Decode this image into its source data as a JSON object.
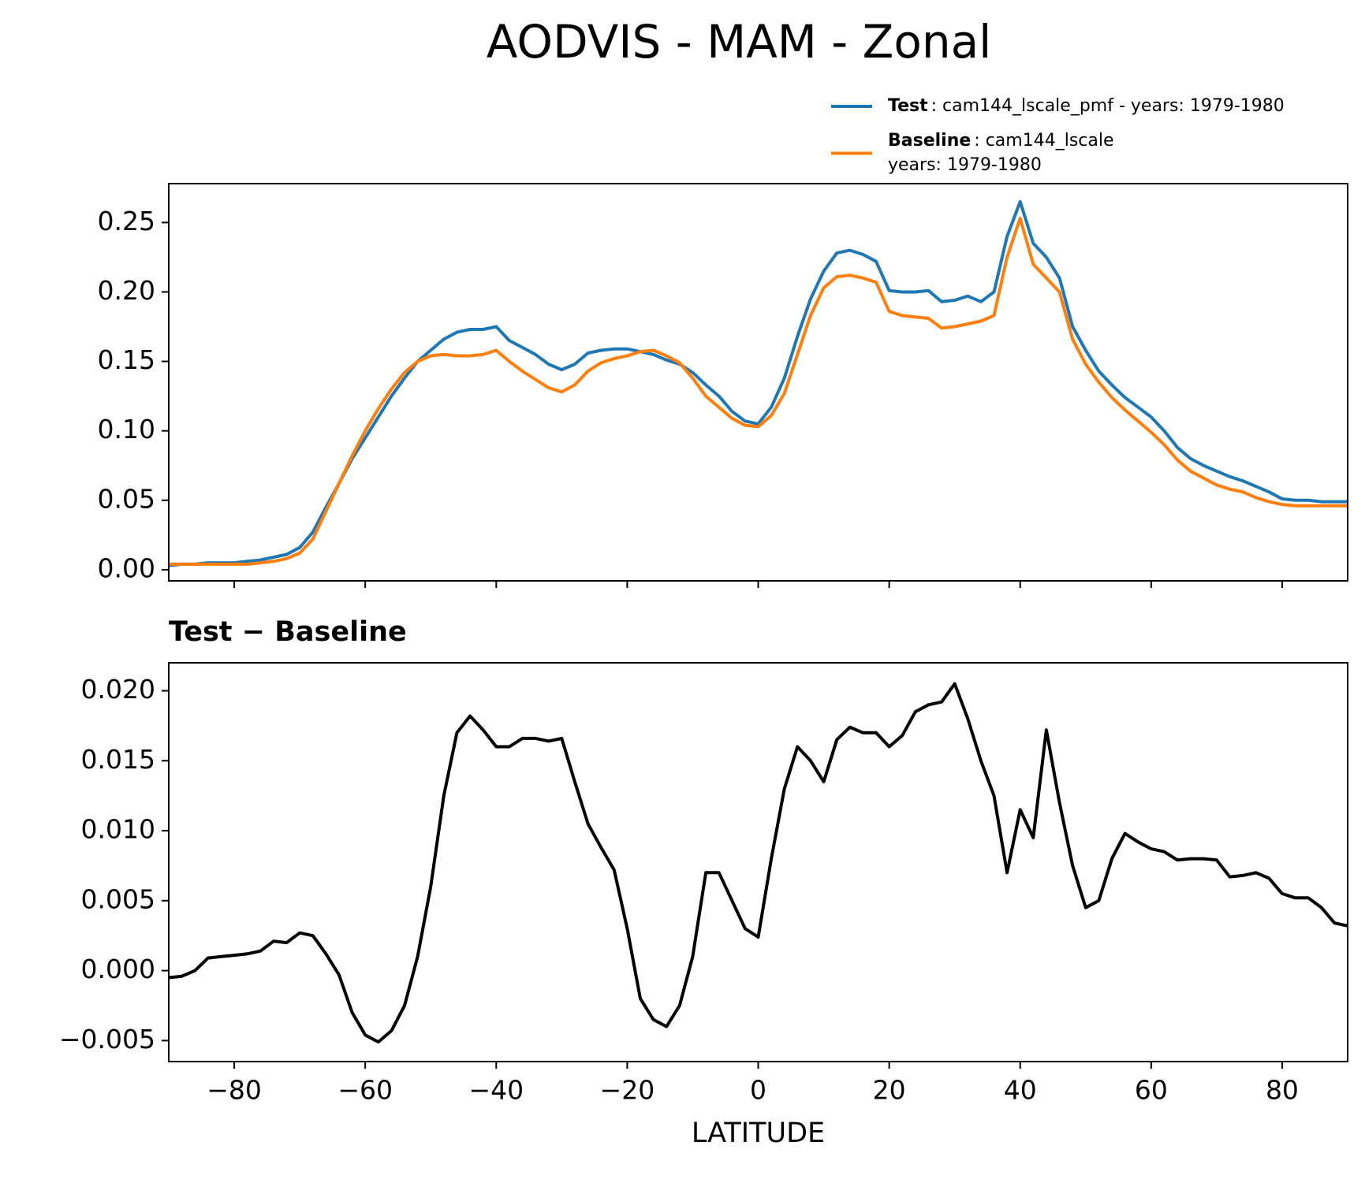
{
  "suptitle": "AODVIS - MAM - Zonal",
  "chart_data": [
    {
      "type": "line",
      "x": [
        -90,
        -88,
        -86,
        -84,
        -82,
        -80,
        -78,
        -76,
        -74,
        -72,
        -70,
        -68,
        -66,
        -64,
        -62,
        -60,
        -58,
        -56,
        -54,
        -52,
        -50,
        -48,
        -46,
        -44,
        -42,
        -40,
        -38,
        -36,
        -34,
        -32,
        -30,
        -28,
        -26,
        -24,
        -22,
        -20,
        -18,
        -16,
        -14,
        -12,
        -10,
        -8,
        -6,
        -4,
        -2,
        0,
        2,
        4,
        6,
        8,
        10,
        12,
        14,
        16,
        18,
        20,
        22,
        24,
        26,
        28,
        30,
        32,
        34,
        36,
        38,
        40,
        42,
        44,
        46,
        48,
        50,
        52,
        54,
        56,
        58,
        60,
        62,
        64,
        66,
        68,
        70,
        72,
        74,
        76,
        78,
        80,
        82,
        84,
        86,
        88,
        90
      ],
      "series": [
        {
          "name": "Test",
          "label": [
            ": cam144_lscale_pmf - years: 1979-1980"
          ],
          "color": "#1f77b4",
          "values": [
            0.003,
            0.004,
            0.004,
            0.005,
            0.005,
            0.005,
            0.006,
            0.007,
            0.009,
            0.011,
            0.016,
            0.027,
            0.045,
            0.062,
            0.08,
            0.095,
            0.11,
            0.125,
            0.138,
            0.15,
            0.158,
            0.166,
            0.171,
            0.173,
            0.173,
            0.175,
            0.165,
            0.16,
            0.155,
            0.148,
            0.144,
            0.148,
            0.156,
            0.158,
            0.159,
            0.159,
            0.157,
            0.155,
            0.151,
            0.148,
            0.142,
            0.133,
            0.125,
            0.114,
            0.107,
            0.105,
            0.117,
            0.138,
            0.168,
            0.195,
            0.215,
            0.228,
            0.23,
            0.227,
            0.222,
            0.201,
            0.2,
            0.2,
            0.201,
            0.193,
            0.194,
            0.197,
            0.193,
            0.2,
            0.24,
            0.265,
            0.235,
            0.225,
            0.21,
            0.175,
            0.158,
            0.143,
            0.133,
            0.124,
            0.117,
            0.11,
            0.1,
            0.088,
            0.08,
            0.075,
            0.071,
            0.067,
            0.064,
            0.06,
            0.056,
            0.051,
            0.05,
            0.05,
            0.049,
            0.049,
            0.049
          ]
        },
        {
          "name": "Baseline",
          "label": [
            ": cam144_lscale",
            "years: 1979-1980"
          ],
          "color": "#ff7f0e",
          "values": [
            0.004,
            0.004,
            0.004,
            0.004,
            0.004,
            0.004,
            0.004,
            0.005,
            0.006,
            0.008,
            0.012,
            0.022,
            0.042,
            0.062,
            0.082,
            0.1,
            0.116,
            0.13,
            0.142,
            0.15,
            0.154,
            0.155,
            0.154,
            0.154,
            0.155,
            0.158,
            0.15,
            0.143,
            0.137,
            0.131,
            0.128,
            0.133,
            0.143,
            0.149,
            0.152,
            0.154,
            0.157,
            0.158,
            0.154,
            0.149,
            0.138,
            0.125,
            0.117,
            0.109,
            0.104,
            0.103,
            0.111,
            0.127,
            0.155,
            0.183,
            0.203,
            0.211,
            0.212,
            0.21,
            0.207,
            0.186,
            0.183,
            0.182,
            0.181,
            0.174,
            0.175,
            0.177,
            0.179,
            0.183,
            0.225,
            0.253,
            0.22,
            0.21,
            0.2,
            0.166,
            0.148,
            0.135,
            0.124,
            0.115,
            0.107,
            0.099,
            0.09,
            0.079,
            0.071,
            0.066,
            0.061,
            0.058,
            0.056,
            0.052,
            0.049,
            0.047,
            0.046,
            0.046,
            0.046,
            0.046,
            0.046
          ]
        }
      ],
      "xlim": [
        -90,
        90
      ],
      "xticks": [
        -80,
        -60,
        -40,
        -20,
        0,
        20,
        40,
        60,
        80
      ],
      "ylim": [
        -0.008,
        0.278
      ],
      "yticks": [
        {
          "value": 0,
          "label": "0.00"
        },
        {
          "value": 0.05,
          "label": "0.05"
        },
        {
          "value": 0.1,
          "label": "0.10"
        },
        {
          "value": 0.15,
          "label": "0.15"
        },
        {
          "value": 0.2,
          "label": "0.20"
        },
        {
          "value": 0.25,
          "label": "0.25"
        }
      ]
    },
    {
      "type": "line",
      "title": "Test − Baseline",
      "xlabel": "LATITUDE",
      "x": [
        -90,
        -88,
        -86,
        -84,
        -82,
        -80,
        -78,
        -76,
        -74,
        -72,
        -70,
        -68,
        -66,
        -64,
        -62,
        -60,
        -58,
        -56,
        -54,
        -52,
        -50,
        -48,
        -46,
        -44,
        -42,
        -40,
        -38,
        -36,
        -34,
        -32,
        -30,
        -28,
        -26,
        -24,
        -22,
        -20,
        -18,
        -16,
        -14,
        -12,
        -10,
        -8,
        -6,
        -4,
        -2,
        0,
        2,
        4,
        6,
        8,
        10,
        12,
        14,
        16,
        18,
        20,
        22,
        24,
        26,
        28,
        30,
        32,
        34,
        36,
        38,
        40,
        42,
        44,
        46,
        48,
        50,
        52,
        54,
        56,
        58,
        60,
        62,
        64,
        66,
        68,
        70,
        72,
        74,
        76,
        78,
        80,
        82,
        84,
        86,
        88,
        90
      ],
      "series": [
        {
          "color": "#000000",
          "values": [
            -0.0005,
            -0.0004,
            0.0,
            0.0009,
            0.001,
            0.0011,
            0.0012,
            0.0014,
            0.0021,
            0.002,
            0.0027,
            0.0025,
            0.0012,
            -0.0003,
            -0.003,
            -0.0046,
            -0.0051,
            -0.0043,
            -0.0025,
            0.001,
            0.006,
            0.0125,
            0.017,
            0.0182,
            0.0172,
            0.016,
            0.016,
            0.0166,
            0.0166,
            0.0164,
            0.0166,
            0.0135,
            0.0105,
            0.0088,
            0.0072,
            0.003,
            -0.002,
            -0.0035,
            -0.004,
            -0.0025,
            0.001,
            0.007,
            0.007,
            0.005,
            0.003,
            0.0024,
            0.008,
            0.013,
            0.016,
            0.015,
            0.0135,
            0.0165,
            0.0174,
            0.017,
            0.017,
            0.016,
            0.0168,
            0.0185,
            0.019,
            0.0192,
            0.0205,
            0.018,
            0.015,
            0.0125,
            0.007,
            0.0115,
            0.0095,
            0.0172,
            0.012,
            0.0075,
            0.0045,
            0.005,
            0.008,
            0.0098,
            0.0092,
            0.0087,
            0.0085,
            0.0079,
            0.008,
            0.008,
            0.0079,
            0.0067,
            0.0068,
            0.007,
            0.0066,
            0.0055,
            0.0052,
            0.0052,
            0.0045,
            0.0034,
            0.0032
          ]
        }
      ],
      "xlim": [
        -90,
        90
      ],
      "xticks": [
        {
          "value": -80,
          "label": "−80"
        },
        {
          "value": -60,
          "label": "−60"
        },
        {
          "value": -40,
          "label": "−40"
        },
        {
          "value": -20,
          "label": "−20"
        },
        0,
        20,
        40,
        60,
        80
      ],
      "ylim": [
        -0.0065,
        0.022
      ],
      "yticks": [
        {
          "value": -0.005,
          "label": "−0.005"
        },
        {
          "value": 0,
          "label": "0.000"
        },
        {
          "value": 0.005,
          "label": "0.005"
        },
        {
          "value": 0.01,
          "label": "0.010"
        },
        {
          "value": 0.015,
          "label": "0.015"
        },
        {
          "value": 0.02,
          "label": "0.020"
        }
      ]
    }
  ]
}
